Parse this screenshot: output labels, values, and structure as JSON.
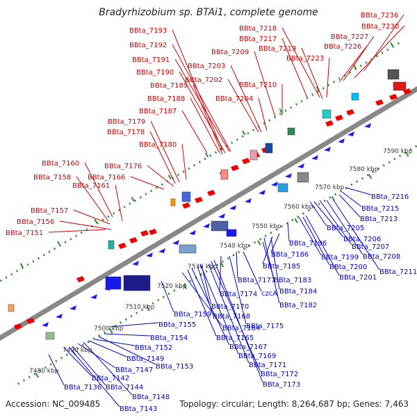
{
  "title": "Bradyrhizobium sp. BTAi1, complete genome",
  "footer": {
    "accession": "Accession: NC_009485",
    "topology": "Topology: circular; Length: 8,264,687 bp; Genes: 7,463"
  },
  "colors": {
    "forward_label": "#cc0000",
    "reverse_label": "#0000cc",
    "backbone": "#888888",
    "tick_dots": "#2e8b2e",
    "forward_gene": "#ee0000",
    "reverse_gene": "#1a1aee"
  },
  "kbp_labels": [
    "7480 kbp",
    "7490 kbp",
    "7500 kbp",
    "7510 kbp",
    "7520 kbp",
    "7530 kbp",
    "7540 kbp",
    "7550 kbp",
    "7560 kbp",
    "7570 kbp",
    "7580 kbp",
    "7590 kbp"
  ],
  "forward_labels": [
    "BBta_7151",
    "BBta_7156",
    "BBta_7157",
    "BBta_7158",
    "BBta_7160",
    "BBta_7161",
    "BBta_7166",
    "BBta_7176",
    "BBta_7178",
    "BBta_7179",
    "BBta_7180",
    "BBta_7187",
    "BBta_7188",
    "BBta_7189",
    "BBta_7190",
    "BBta_7191",
    "BBta_7192",
    "BBta_7193",
    "BBta_7202",
    "BBta_7203",
    "BBta_7204",
    "BBta_7209",
    "BBta_7210",
    "BBta_7217",
    "BBta_7218",
    "BBta_7219",
    "BBta_7223",
    "BBta_7226",
    "BBta_7227",
    "BBta_7230",
    "BBta_7236"
  ],
  "reverse_labels": [
    "BBta_7136",
    "BBta_7142",
    "BBta_7143",
    "BBta_7144",
    "BBta_7147",
    "BBta_7148",
    "BBta_7149",
    "BBta_7152",
    "BBta_7153",
    "BBta_7154",
    "BBta_7155",
    "BBta_7159",
    "BBta_7164",
    "BBta_7165",
    "BBta_7167",
    "BBta_7168",
    "BBta_7169",
    "BBta_7170",
    "BBta_7171",
    "BBta_7172",
    "BBta_7173",
    "BBta_7174",
    "BBta_7175",
    "BBta_7177",
    "czcA",
    "BBta_7182",
    "BBta_7183",
    "BBta_7184",
    "BBta_7185",
    "BBta_7186",
    "BBta_7196",
    "BBta_7199",
    "BBta_7200",
    "BBta_7201",
    "BBta_7205",
    "BBta_7206",
    "BBta_7207",
    "BBta_7208",
    "BBta_7211",
    "BBta_7213",
    "BBta_7215",
    "BBta_7216"
  ]
}
